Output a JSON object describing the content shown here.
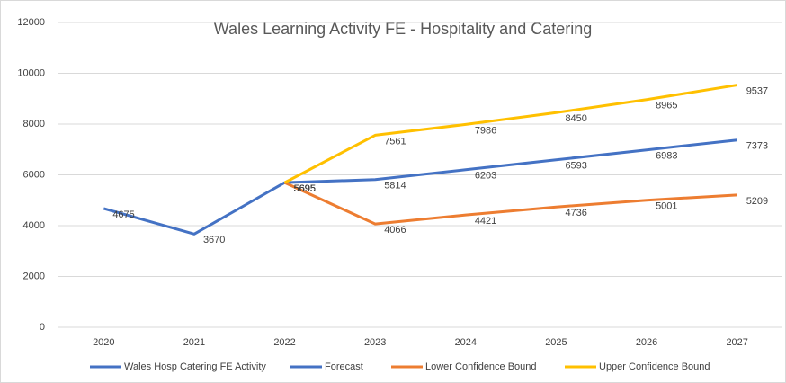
{
  "chart_data": {
    "type": "line",
    "title": "Wales Learning Activity FE - Hospitality and Catering",
    "categories": [
      "2020",
      "2021",
      "2022",
      "2023",
      "2024",
      "2025",
      "2026",
      "2027"
    ],
    "series": [
      {
        "name": "Wales Hosp Catering FE Activity",
        "color": "#4472c4",
        "values": [
          4675,
          3670,
          5695,
          null,
          null,
          null,
          null,
          null
        ]
      },
      {
        "name": "Forecast",
        "color": "#4472c4",
        "values": [
          null,
          null,
          5695,
          5814,
          6203,
          6593,
          6983,
          7373
        ]
      },
      {
        "name": "Lower Confidence Bound",
        "color": "#ed7d31",
        "values": [
          null,
          null,
          5695,
          4066,
          4421,
          4736,
          5001,
          5209
        ]
      },
      {
        "name": "Upper Confidence Bound",
        "color": "#ffc000",
        "values": [
          null,
          null,
          5695,
          7561,
          7986,
          8450,
          8965,
          9537
        ]
      }
    ],
    "ylim": [
      0,
      12000
    ],
    "yticks": [
      0,
      2000,
      4000,
      6000,
      8000,
      10000,
      12000
    ],
    "grid": true,
    "legend": "bottom"
  }
}
